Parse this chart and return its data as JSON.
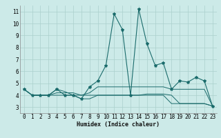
{
  "xlabel": "Humidex (Indice chaleur)",
  "bg_color": "#cceae8",
  "grid_color": "#aad0cc",
  "line_color": "#1a6b6b",
  "xlim": [
    -0.5,
    23.5
  ],
  "ylim": [
    2.5,
    11.5
  ],
  "xticks": [
    0,
    1,
    2,
    3,
    4,
    5,
    6,
    7,
    8,
    9,
    10,
    11,
    12,
    13,
    14,
    15,
    16,
    17,
    18,
    19,
    20,
    21,
    22,
    23
  ],
  "yticks": [
    3,
    4,
    5,
    6,
    7,
    8,
    9,
    10,
    11
  ],
  "main_series": [
    4.5,
    4.0,
    4.0,
    4.0,
    4.5,
    4.0,
    4.0,
    3.7,
    4.7,
    5.2,
    6.5,
    10.8,
    9.5,
    4.0,
    11.2,
    8.3,
    6.5,
    6.7,
    4.5,
    5.2,
    5.1,
    5.5,
    5.2,
    3.1
  ],
  "flat_series": [
    [
      4.5,
      4.0,
      4.0,
      4.0,
      4.2,
      4.2,
      4.2,
      4.0,
      4.2,
      4.7,
      4.7,
      4.7,
      4.7,
      4.7,
      4.7,
      4.7,
      4.7,
      4.7,
      4.5,
      4.5,
      4.5,
      4.5,
      4.5,
      3.1
    ],
    [
      4.5,
      4.0,
      4.0,
      4.0,
      4.5,
      4.3,
      4.0,
      3.7,
      3.7,
      4.0,
      4.0,
      4.0,
      4.0,
      4.0,
      4.0,
      4.1,
      4.1,
      4.1,
      4.0,
      3.3,
      3.3,
      3.3,
      3.3,
      3.1
    ],
    [
      4.5,
      4.0,
      4.0,
      4.0,
      4.0,
      4.0,
      4.0,
      4.0,
      4.0,
      4.0,
      4.0,
      4.0,
      4.0,
      4.0,
      4.0,
      4.0,
      4.0,
      4.0,
      3.3,
      3.3,
      3.3,
      3.3,
      3.3,
      3.1
    ]
  ],
  "xlabel_fontsize": 6.0,
  "tick_fontsize": 5.5
}
